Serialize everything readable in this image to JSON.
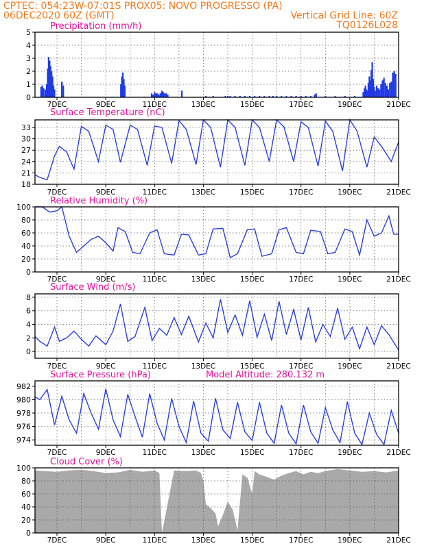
{
  "header": {
    "line1_left": "CPTEC:   054:23W-07:01S   PROX05: NOVO PROGRESSO (PA)",
    "line2_left": "06DEC2020 60Z (GMT)",
    "line2_right": "Vertical Grid Line: 60Z",
    "line3_right": "TQ0126L028"
  },
  "colors": {
    "header": "#f07a1a",
    "title": "#e0149a",
    "line": "#2a3fe0",
    "bar": "#1f3ae6",
    "cloud": "#a9a9a9"
  },
  "xaxis": {
    "labels": [
      "7DEC",
      "9DEC",
      "11DEC",
      "13DEC",
      "15DEC",
      "17DEC",
      "19DEC",
      "21DEC"
    ],
    "label_days": [
      7,
      9,
      11,
      13,
      15,
      17,
      19,
      21
    ],
    "grid_days": [
      7,
      8,
      9,
      10,
      11,
      12,
      13,
      14,
      15,
      16,
      17,
      18,
      19,
      20
    ],
    "range": [
      6.1,
      21.0
    ]
  },
  "chart_data": [
    {
      "type": "bar",
      "id": "precip",
      "title": "Precipitation (mm/h)",
      "ylim": [
        0,
        5
      ],
      "yticks": [
        0,
        1,
        2,
        3,
        4,
        5
      ],
      "x": [
        6.35,
        6.4,
        6.45,
        6.52,
        6.58,
        6.62,
        6.66,
        6.7,
        6.74,
        6.78,
        6.82,
        6.86,
        6.9,
        7.2,
        7.26,
        9.62,
        9.66,
        9.7,
        9.74,
        9.78,
        10.88,
        10.94,
        11.0,
        11.06,
        11.12,
        11.18,
        11.24,
        11.3,
        11.36,
        11.42,
        11.48,
        11.54,
        12.12,
        13.1,
        13.4,
        13.9,
        14.0,
        14.1,
        14.3,
        14.5,
        14.7,
        14.9,
        15.1,
        15.3,
        15.5,
        15.7,
        15.85,
        16.0,
        16.2,
        16.4,
        16.6,
        16.8,
        17.0,
        17.2,
        17.4,
        17.56,
        17.62,
        18.0,
        18.4,
        18.8,
        19.2,
        19.55,
        19.6,
        19.64,
        19.68,
        19.72,
        19.76,
        19.8,
        19.84,
        19.88,
        19.92,
        19.96,
        20.0,
        20.04,
        20.1,
        20.16,
        20.22,
        20.28,
        20.34,
        20.4,
        20.46,
        20.52,
        20.58,
        20.64,
        20.7,
        20.76,
        20.82,
        20.88
      ],
      "values": [
        0.8,
        0.9,
        0.7,
        0.6,
        1.0,
        2.2,
        3.1,
        2.8,
        2.4,
        2.0,
        1.6,
        0.9,
        0.6,
        1.2,
        0.9,
        1.0,
        1.6,
        1.9,
        1.4,
        0.9,
        0.3,
        0.2,
        0.4,
        0.3,
        0.3,
        0.2,
        0.3,
        0.5,
        0.4,
        0.3,
        0.3,
        0.2,
        0.5,
        0.1,
        0.1,
        0.1,
        0.1,
        0.1,
        0.1,
        0.1,
        0.1,
        0.1,
        0.1,
        0.1,
        0.1,
        0.1,
        0.1,
        0.1,
        0.1,
        0.1,
        0.1,
        0.1,
        0.1,
        0.1,
        0.1,
        0.2,
        0.3,
        0.1,
        0.1,
        0.1,
        0.1,
        0.4,
        0.7,
        0.9,
        0.6,
        0.5,
        1.1,
        1.6,
        1.3,
        2.1,
        2.7,
        1.4,
        0.8,
        0.5,
        0.9,
        0.7,
        0.6,
        1.0,
        1.3,
        1.5,
        1.1,
        0.9,
        0.6,
        1.1,
        1.2,
        1.9,
        2.0,
        1.8
      ]
    },
    {
      "type": "line",
      "id": "temp",
      "title": "Surface Temperature (nC)",
      "ylim": [
        18,
        35
      ],
      "yticks": [
        18,
        21,
        24,
        27,
        30,
        33
      ],
      "x": [
        6.1,
        6.3,
        6.6,
        6.9,
        7.1,
        7.4,
        7.7,
        8.0,
        8.3,
        8.7,
        9.0,
        9.3,
        9.6,
        10.0,
        10.3,
        10.7,
        11.0,
        11.3,
        11.7,
        12.0,
        12.3,
        12.7,
        13.0,
        13.3,
        13.7,
        14.0,
        14.3,
        14.7,
        15.0,
        15.3,
        15.7,
        16.0,
        16.3,
        16.7,
        17.0,
        17.3,
        17.7,
        18.0,
        18.3,
        18.7,
        19.0,
        19.3,
        19.7,
        20.0,
        20.3,
        20.7,
        21.0
      ],
      "values": [
        20.5,
        19.8,
        19.2,
        25.5,
        28.0,
        26.5,
        22.0,
        33.3,
        32.0,
        24.0,
        33.6,
        32.5,
        23.8,
        33.6,
        32.5,
        23.0,
        33.4,
        33.0,
        23.5,
        34.8,
        32.5,
        23.2,
        35.0,
        33.0,
        22.5,
        35.0,
        33.0,
        23.0,
        35.0,
        33.0,
        24.0,
        35.0,
        33.2,
        24.0,
        34.5,
        33.0,
        22.8,
        34.7,
        32.0,
        21.5,
        35.0,
        32.0,
        22.5,
        30.5,
        28.0,
        24.0,
        29.2
      ]
    },
    {
      "type": "line",
      "id": "rh",
      "title": "Relative Humidity (%)",
      "ylim": [
        0,
        100
      ],
      "yticks": [
        0,
        20,
        40,
        60,
        80,
        100
      ],
      "x": [
        6.1,
        6.4,
        6.7,
        7.0,
        7.2,
        7.5,
        7.8,
        8.1,
        8.4,
        8.7,
        9.0,
        9.3,
        9.5,
        9.8,
        10.1,
        10.4,
        10.8,
        11.1,
        11.4,
        11.8,
        12.1,
        12.4,
        12.8,
        13.1,
        13.4,
        13.8,
        14.1,
        14.4,
        14.8,
        15.1,
        15.4,
        15.8,
        16.1,
        16.4,
        16.8,
        17.1,
        17.4,
        17.8,
        18.1,
        18.4,
        18.8,
        19.1,
        19.4,
        19.7,
        20.0,
        20.3,
        20.6,
        20.8,
        21.0
      ],
      "values": [
        100,
        100,
        92,
        94,
        100,
        55,
        30,
        40,
        50,
        55,
        45,
        32,
        68,
        62,
        30,
        28,
        60,
        65,
        28,
        26,
        58,
        57,
        26,
        28,
        66,
        67,
        22,
        28,
        65,
        66,
        24,
        28,
        65,
        68,
        30,
        28,
        64,
        62,
        28,
        30,
        66,
        62,
        26,
        80,
        55,
        60,
        86,
        58,
        58
      ]
    },
    {
      "type": "line",
      "id": "wind",
      "title": "Surface Wind (m/s)",
      "ylim": [
        -1,
        8.5
      ],
      "yticks": [
        0,
        2,
        4,
        6,
        8
      ],
      "x": [
        6.1,
        6.3,
        6.6,
        6.9,
        7.1,
        7.4,
        7.7,
        8.0,
        8.3,
        8.6,
        9.0,
        9.3,
        9.6,
        9.9,
        10.2,
        10.6,
        10.9,
        11.2,
        11.5,
        11.8,
        12.1,
        12.4,
        12.8,
        13.1,
        13.4,
        13.7,
        14.0,
        14.3,
        14.6,
        14.9,
        15.2,
        15.5,
        15.8,
        16.1,
        16.4,
        16.7,
        17.0,
        17.3,
        17.6,
        17.9,
        18.2,
        18.5,
        18.8,
        19.1,
        19.4,
        19.7,
        20.0,
        20.3,
        20.6,
        21.0
      ],
      "values": [
        2.2,
        1.5,
        0.8,
        3.6,
        1.5,
        2.0,
        3.0,
        1.8,
        0.8,
        2.3,
        1.0,
        3.0,
        7.0,
        1.5,
        2.2,
        6.5,
        1.6,
        3.4,
        2.4,
        5.0,
        2.5,
        5.2,
        1.4,
        4.2,
        2.0,
        7.7,
        2.8,
        5.4,
        2.4,
        7.5,
        2.1,
        5.5,
        1.6,
        7.4,
        2.5,
        6.2,
        1.7,
        6.5,
        1.4,
        4.0,
        2.2,
        6.4,
        1.8,
        3.6,
        0.4,
        3.6,
        1.0,
        3.8,
        2.5,
        0.2
      ]
    },
    {
      "type": "line",
      "id": "pressure",
      "title": "Surface Pressure (hPa)",
      "annotation": "Model Altitude: 280.132 m",
      "ylim": [
        973.2,
        982.8
      ],
      "yticks": [
        974,
        976,
        978,
        980,
        982
      ],
      "x": [
        6.1,
        6.3,
        6.6,
        6.9,
        7.2,
        7.5,
        7.8,
        8.1,
        8.4,
        8.7,
        9.0,
        9.3,
        9.6,
        9.9,
        10.2,
        10.5,
        10.8,
        11.1,
        11.4,
        11.7,
        12.0,
        12.3,
        12.6,
        12.9,
        13.2,
        13.5,
        13.8,
        14.1,
        14.4,
        14.7,
        15.0,
        15.3,
        15.6,
        15.9,
        16.2,
        16.5,
        16.8,
        17.1,
        17.4,
        17.7,
        18.0,
        18.3,
        18.6,
        18.9,
        19.2,
        19.5,
        19.8,
        20.1,
        20.4,
        20.7,
        21.0
      ],
      "values": [
        980.4,
        980.0,
        981.5,
        976.2,
        980.5,
        977.0,
        975.0,
        980.9,
        978.0,
        975.6,
        981.6,
        977.0,
        974.5,
        980.8,
        977.5,
        974.4,
        980.9,
        976.5,
        974.0,
        980.2,
        976.0,
        973.6,
        979.8,
        975.0,
        973.8,
        980.2,
        975.5,
        974.2,
        979.6,
        975.2,
        973.9,
        979.6,
        975.0,
        973.5,
        979.2,
        975.0,
        973.4,
        979.2,
        975.2,
        973.5,
        978.8,
        975.5,
        973.6,
        979.7,
        975.0,
        973.3,
        978.0,
        974.8,
        973.3,
        978.4,
        975.0
      ]
    },
    {
      "type": "area",
      "id": "cloud",
      "title": "Cloud Cover (%)",
      "ylim": [
        0,
        100
      ],
      "yticks": [
        0,
        20,
        40,
        60,
        80,
        100
      ],
      "x": [
        6.1,
        6.5,
        7.0,
        7.5,
        8.0,
        8.5,
        9.0,
        9.5,
        10.0,
        10.5,
        11.0,
        11.2,
        11.3,
        11.8,
        12.3,
        12.7,
        12.9,
        13.0,
        13.1,
        13.3,
        13.5,
        13.6,
        13.8,
        14.0,
        14.2,
        14.4,
        14.6,
        14.8,
        15.0,
        15.1,
        15.3,
        15.6,
        15.9,
        16.2,
        16.5,
        16.8,
        17.1,
        17.4,
        17.7,
        18.0,
        18.5,
        19.0,
        19.5,
        20.0,
        20.5,
        21.0
      ],
      "values": [
        96,
        95,
        94,
        96,
        97,
        95,
        92,
        93,
        97,
        94,
        96,
        92,
        0,
        96,
        95,
        96,
        92,
        80,
        44,
        38,
        30,
        10,
        28,
        48,
        36,
        4,
        90,
        85,
        60,
        95,
        90,
        86,
        82,
        88,
        92,
        95,
        90,
        94,
        92,
        95,
        98,
        96,
        94,
        95,
        93,
        96
      ]
    }
  ]
}
